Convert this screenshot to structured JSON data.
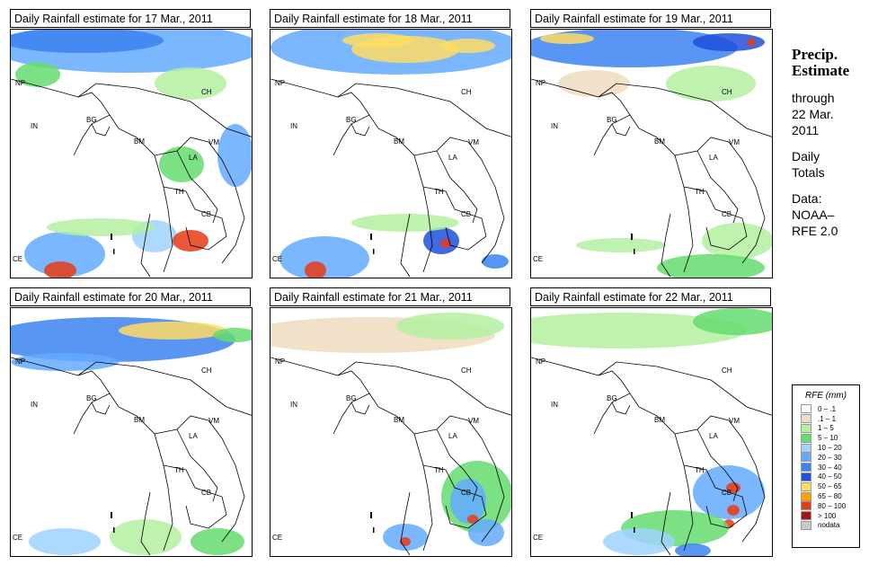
{
  "panels": [
    {
      "title": "Daily Rainfall estimate for  17 Mar., 2011"
    },
    {
      "title": "Daily Rainfall estimate for  18 Mar., 2011"
    },
    {
      "title": "Daily Rainfall estimate for  19 Mar., 2011"
    },
    {
      "title": "Daily Rainfall estimate for  20 Mar., 2011"
    },
    {
      "title": "Daily Rainfall estimate for  21 Mar., 2011"
    },
    {
      "title": "Daily Rainfall estimate for  22 Mar., 2011"
    }
  ],
  "country_labels": {
    "NP": "NP",
    "CH": "CH",
    "IN": "IN",
    "BG": "BG",
    "BM": "BM",
    "VM": "VM",
    "LA": "LA",
    "TH": "TH",
    "CB": "CB",
    "CE": "CE"
  },
  "side": {
    "heading1": "Precip.",
    "heading2": "Estimate",
    "line1": "through",
    "line2": "22 Mar.",
    "line3": "2011",
    "line4": "Daily",
    "line5": "Totals",
    "line6": "Data:",
    "line7": "NOAA–",
    "line8": "RFE 2.0"
  },
  "legend": {
    "title": "RFE (mm)",
    "items": [
      {
        "label": "0 – .1",
        "color": "#ffffff"
      },
      {
        "label": ".1 – 1",
        "color": "#f0dcc0"
      },
      {
        "label": "1 – 5",
        "color": "#b4f0a0"
      },
      {
        "label": "5 – 10",
        "color": "#64dc6e"
      },
      {
        "label": "10 – 20",
        "color": "#a0d2ff"
      },
      {
        "label": "20 – 30",
        "color": "#64aaff"
      },
      {
        "label": "30 – 40",
        "color": "#3c82f0"
      },
      {
        "label": "40 – 50",
        "color": "#1e50dc"
      },
      {
        "label": "50 – 65",
        "color": "#ffdc64"
      },
      {
        "label": "65 – 80",
        "color": "#ffa000"
      },
      {
        "label": "80 – 100",
        "color": "#e63c14"
      },
      {
        "label": "> 100",
        "color": "#a01414"
      },
      {
        "label": "nodata",
        "color": "#c8c8c8"
      }
    ]
  }
}
